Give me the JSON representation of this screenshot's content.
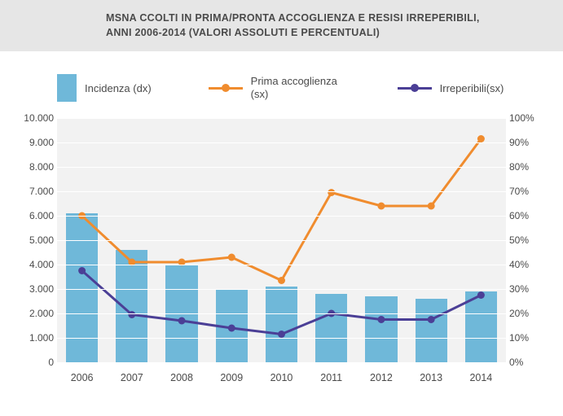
{
  "title_line1": "MSNA CCOLTI IN PRIMA/PRONTA ACCOGLIENZA E RESISI IRREPERIBILI,",
  "title_line2": "ANNI 2006-2014 (VALORI ASSOLUTI E PERCENTUALI)",
  "legend": {
    "incidenza": "Incidenza (dx)",
    "prima": "Prima accoglienza (sx)",
    "irreperibili": "Irreperibili(sx)"
  },
  "colors": {
    "bar": "#6fb8d9",
    "prima": "#f08c2e",
    "irreperibili": "#4b3f96",
    "header_bg": "#e6e6e6",
    "plot_bg": "#f2f2f2",
    "grid": "#ffffff",
    "text": "#4a4a4a"
  },
  "chart": {
    "type": "combo-bar-line",
    "categories": [
      "2006",
      "2007",
      "2008",
      "2009",
      "2010",
      "2011",
      "2012",
      "2013",
      "2014"
    ],
    "y_left": {
      "min": 0,
      "max": 10000,
      "step": 1000,
      "labels": [
        "0",
        "1.000",
        "2.000",
        "3.000",
        "4.000",
        "5.000",
        "6.000",
        "7.000",
        "8.000",
        "9.000",
        "10.000"
      ]
    },
    "y_right": {
      "min": 0,
      "max": 100,
      "step": 10,
      "suffix": "%",
      "labels": [
        "0%",
        "10%",
        "20%",
        "30%",
        "40%",
        "50%",
        "60%",
        "70%",
        "80%",
        "90%",
        "100%"
      ]
    },
    "bars_series": {
      "name": "Incidenza (dx)",
      "axis": "right",
      "values": [
        61,
        46,
        40,
        30,
        31,
        28,
        27,
        26,
        29
      ]
    },
    "line_prima": {
      "name": "Prima accoglienza (sx)",
      "axis": "left",
      "color": "#f08c2e",
      "marker": "circle",
      "marker_size": 9,
      "line_width": 3,
      "values": [
        6000,
        4100,
        4100,
        4300,
        3350,
        6950,
        6400,
        6400,
        9150
      ]
    },
    "line_irreperibili": {
      "name": "Irreperibili (sx)",
      "axis": "left",
      "color": "#4b3f96",
      "marker": "circle",
      "marker_size": 9,
      "line_width": 3,
      "values": [
        3750,
        1950,
        1700,
        1400,
        1150,
        2000,
        1750,
        1750,
        2750
      ]
    },
    "bar_width_ratio": 0.64,
    "fontsize_axis": 12,
    "fontsize_title": 12.5
  }
}
